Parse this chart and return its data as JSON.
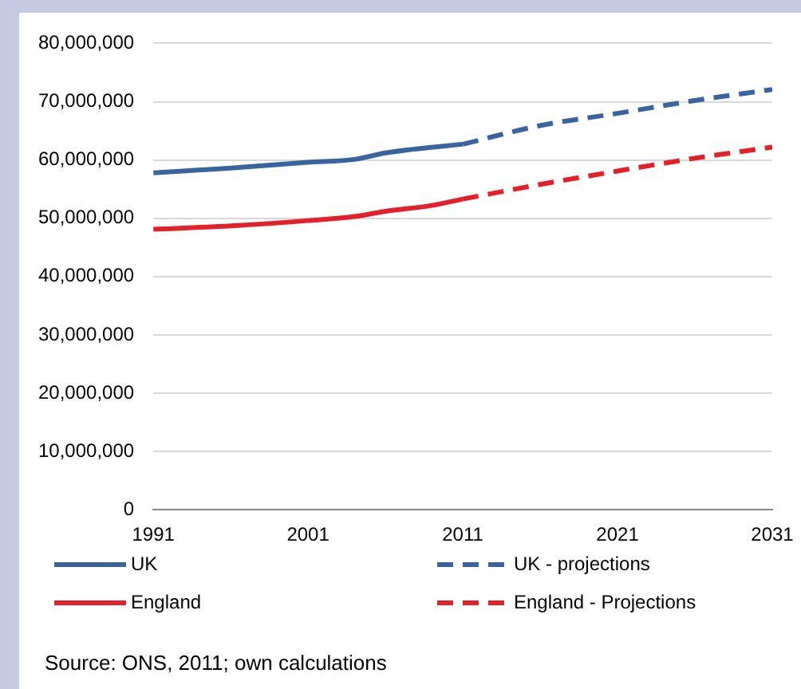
{
  "chart_data": {
    "type": "line",
    "xlim": [
      1991,
      2031
    ],
    "xticks": [
      1991,
      2001,
      2011,
      2021,
      2031
    ],
    "ylim": [
      0,
      80000000
    ],
    "yticks": [
      {
        "value": 0,
        "label": "0"
      },
      {
        "value": 10000000,
        "label": "10,000,000"
      },
      {
        "value": 20000000,
        "label": "20,000,000"
      },
      {
        "value": 30000000,
        "label": "30,000,000"
      },
      {
        "value": 40000000,
        "label": "40,000,000"
      },
      {
        "value": 50000000,
        "label": "50,000,000"
      },
      {
        "value": 60000000,
        "label": "60,000,000"
      },
      {
        "value": 70000000,
        "label": "70,000,000"
      },
      {
        "value": 80000000,
        "label": "80,000,000"
      }
    ],
    "grid": "y",
    "legend": "bottom",
    "marker": "none",
    "series": [
      {
        "name": "UK",
        "color": "#3a64a0",
        "line_style": "solid",
        "x": [
          1991,
          1996,
          2001,
          2004,
          2006,
          2008,
          2011
        ],
        "values": [
          57800000,
          58600000,
          59600000,
          60100000,
          61200000,
          61900000,
          62700000
        ]
      },
      {
        "name": "UK - projections",
        "color": "#3a64a0",
        "line_style": "dashed",
        "x": [
          2011,
          2016,
          2021,
          2026,
          2031
        ],
        "values": [
          62700000,
          65900000,
          68000000,
          70200000,
          72100000
        ]
      },
      {
        "name": "England",
        "color": "#e3212b",
        "line_style": "solid",
        "x": [
          1991,
          1996,
          2001,
          2004,
          2006,
          2009,
          2011
        ],
        "values": [
          48100000,
          48700000,
          49600000,
          50300000,
          51200000,
          52200000,
          53300000
        ]
      },
      {
        "name": "England - Projections",
        "color": "#e3212b",
        "line_style": "dashed",
        "x": [
          2011,
          2016,
          2021,
          2026,
          2031
        ],
        "values": [
          53300000,
          55800000,
          58100000,
          60300000,
          62200000
        ]
      }
    ],
    "annotations": [
      "Source: ONS, 2011; own calculations"
    ]
  }
}
